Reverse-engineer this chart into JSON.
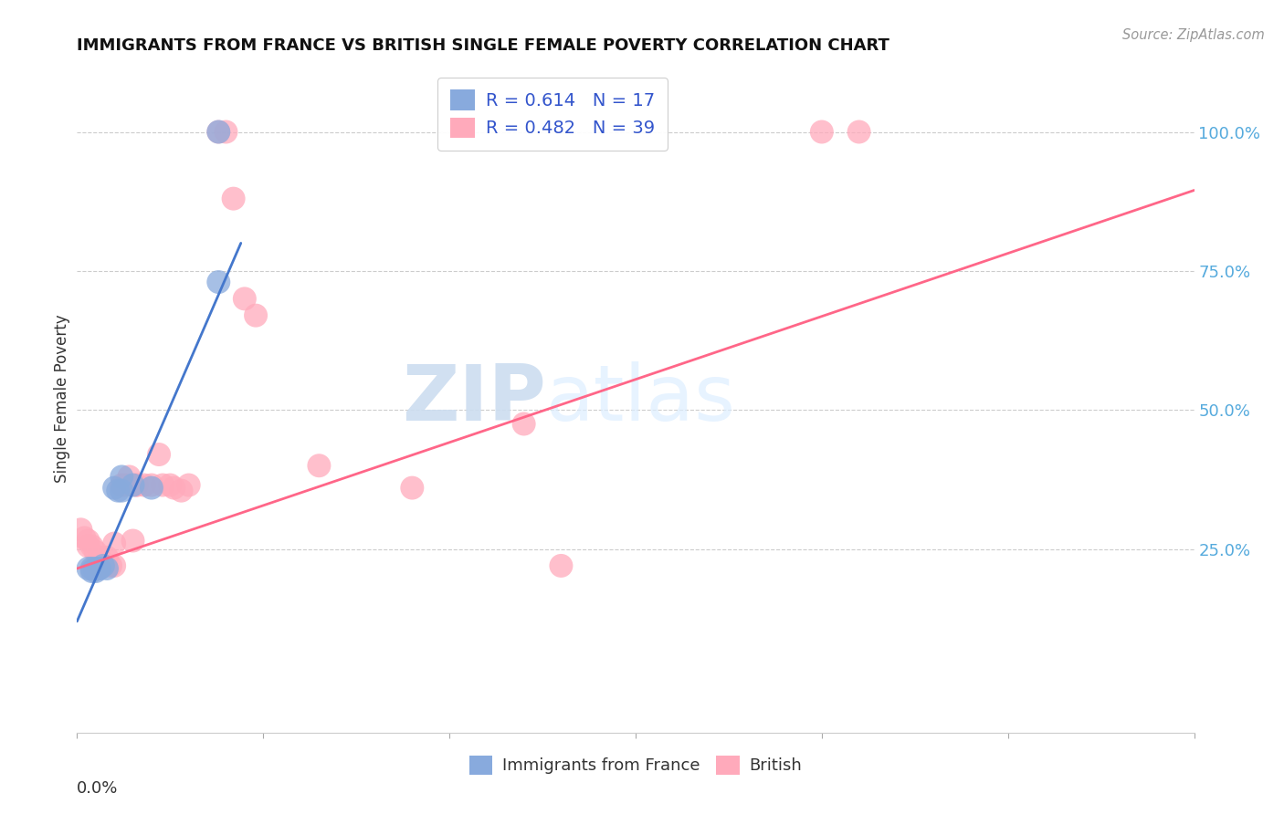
{
  "title": "IMMIGRANTS FROM FRANCE VS BRITISH SINGLE FEMALE POVERTY CORRELATION CHART",
  "source": "Source: ZipAtlas.com",
  "ylabel": "Single Female Poverty",
  "legend_blue_R": "0.614",
  "legend_blue_N": "17",
  "legend_pink_R": "0.482",
  "legend_pink_N": "39",
  "blue_color": "#88AADD",
  "pink_color": "#FFAABB",
  "blue_line_color": "#4477CC",
  "pink_line_color": "#FF6688",
  "watermark_zip": "ZIP",
  "watermark_atlas": "atlas",
  "blue_scatter": [
    [
      0.003,
      0.215
    ],
    [
      0.004,
      0.215
    ],
    [
      0.004,
      0.21
    ],
    [
      0.005,
      0.215
    ],
    [
      0.005,
      0.21
    ],
    [
      0.006,
      0.215
    ],
    [
      0.006,
      0.215
    ],
    [
      0.007,
      0.22
    ],
    [
      0.008,
      0.215
    ],
    [
      0.01,
      0.36
    ],
    [
      0.011,
      0.355
    ],
    [
      0.012,
      0.355
    ],
    [
      0.012,
      0.38
    ],
    [
      0.015,
      0.365
    ],
    [
      0.02,
      0.36
    ],
    [
      0.038,
      0.73
    ],
    [
      0.038,
      1.0
    ]
  ],
  "pink_scatter": [
    [
      0.001,
      0.285
    ],
    [
      0.002,
      0.27
    ],
    [
      0.003,
      0.265
    ],
    [
      0.003,
      0.255
    ],
    [
      0.004,
      0.255
    ],
    [
      0.005,
      0.245
    ],
    [
      0.006,
      0.235
    ],
    [
      0.006,
      0.22
    ],
    [
      0.007,
      0.22
    ],
    [
      0.007,
      0.22
    ],
    [
      0.008,
      0.235
    ],
    [
      0.009,
      0.22
    ],
    [
      0.01,
      0.22
    ],
    [
      0.01,
      0.26
    ],
    [
      0.012,
      0.365
    ],
    [
      0.013,
      0.365
    ],
    [
      0.014,
      0.38
    ],
    [
      0.015,
      0.265
    ],
    [
      0.016,
      0.365
    ],
    [
      0.016,
      0.365
    ],
    [
      0.018,
      0.365
    ],
    [
      0.02,
      0.365
    ],
    [
      0.022,
      0.42
    ],
    [
      0.023,
      0.365
    ],
    [
      0.025,
      0.365
    ],
    [
      0.026,
      0.36
    ],
    [
      0.028,
      0.355
    ],
    [
      0.03,
      0.365
    ],
    [
      0.038,
      1.0
    ],
    [
      0.04,
      1.0
    ],
    [
      0.042,
      0.88
    ],
    [
      0.045,
      0.7
    ],
    [
      0.048,
      0.67
    ],
    [
      0.065,
      0.4
    ],
    [
      0.09,
      0.36
    ],
    [
      0.12,
      0.475
    ],
    [
      0.13,
      0.22
    ],
    [
      0.2,
      1.0
    ],
    [
      0.21,
      1.0
    ]
  ],
  "xlim_min": 0.0,
  "xlim_max": 0.3,
  "ylim_min": -0.08,
  "ylim_max": 1.12,
  "blue_trend_x": [
    0.0,
    0.044
  ],
  "blue_trend_y": [
    0.12,
    0.8
  ],
  "pink_trend_x": [
    0.0,
    0.3
  ],
  "pink_trend_y": [
    0.215,
    0.895
  ],
  "ytick_vals": [
    0.25,
    0.5,
    0.75,
    1.0
  ],
  "ytick_labels": [
    "25.0%",
    "50.0%",
    "75.0%",
    "100.0%"
  ],
  "xtick_left_label": "0.0%",
  "legend_bottom_blue": "Immigrants from France",
  "legend_bottom_pink": "British"
}
